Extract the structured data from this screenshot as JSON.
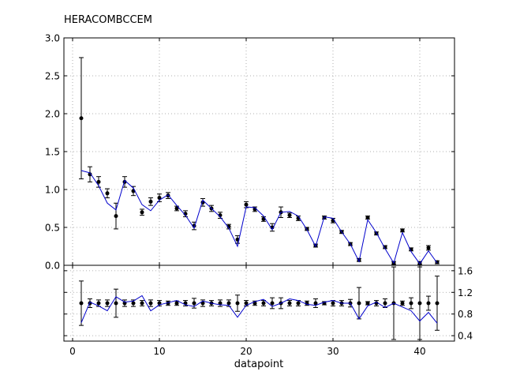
{
  "chart_data": [
    {
      "type": "line",
      "title": "HERACOMBCCEM",
      "xlabel": "",
      "ylabel": "",
      "xlim": [
        -1,
        44
      ],
      "ylim": [
        0,
        3.0
      ],
      "yticks": [
        0.0,
        0.5,
        1.0,
        1.5,
        2.0,
        2.5,
        3.0
      ],
      "ytick_labels": [
        "0.0",
        "0.5",
        "1.0",
        "1.5",
        "2.0",
        "2.5",
        "3.0"
      ],
      "xticks": [
        0,
        10,
        20,
        30,
        40
      ],
      "grid": true,
      "legend": "none",
      "colors": {
        "data": "#000000",
        "theory": "#0000cc",
        "grid": "#999999"
      },
      "series": [
        {
          "kind": "errorbar",
          "x": [
            1,
            2,
            3,
            4,
            5,
            6,
            7,
            8,
            9,
            10,
            11,
            12,
            13,
            14,
            15,
            16,
            17,
            18,
            19,
            20,
            21,
            22,
            23,
            24,
            25,
            26,
            27,
            28,
            29,
            30,
            31,
            32,
            33,
            34,
            35,
            36,
            37,
            38,
            39,
            40,
            41,
            42
          ],
          "y": [
            1.94,
            1.2,
            1.1,
            0.95,
            0.65,
            1.1,
            0.98,
            0.7,
            0.84,
            0.89,
            0.92,
            0.75,
            0.68,
            0.52,
            0.83,
            0.75,
            0.66,
            0.51,
            0.34,
            0.8,
            0.74,
            0.61,
            0.5,
            0.7,
            0.66,
            0.62,
            0.48,
            0.26,
            0.63,
            0.59,
            0.44,
            0.28,
            0.07,
            0.63,
            0.42,
            0.24,
            0.03,
            0.46,
            0.21,
            0.03,
            0.23,
            0.04
          ],
          "err": [
            0.8,
            0.1,
            0.07,
            0.06,
            0.17,
            0.07,
            0.06,
            0.04,
            0.05,
            0.05,
            0.04,
            0.03,
            0.04,
            0.05,
            0.05,
            0.04,
            0.04,
            0.03,
            0.05,
            0.04,
            0.03,
            0.03,
            0.05,
            0.07,
            0.03,
            0.03,
            0.02,
            0.02,
            0.02,
            0.03,
            0.02,
            0.02,
            0.02,
            0.02,
            0.02,
            0.02,
            0.02,
            0.02,
            0.02,
            0.02,
            0.03,
            0.02
          ]
        },
        {
          "kind": "line",
          "x": [
            1,
            2,
            3,
            4,
            5,
            6,
            7,
            8,
            9,
            10,
            11,
            12,
            13,
            14,
            15,
            16,
            17,
            18,
            19,
            20,
            21,
            22,
            23,
            24,
            25,
            26,
            27,
            28,
            29,
            30,
            31,
            32,
            33,
            34,
            35,
            36,
            37,
            38,
            39,
            40,
            41,
            42
          ],
          "y": [
            1.25,
            1.22,
            1.05,
            0.82,
            0.73,
            1.12,
            1.02,
            0.8,
            0.72,
            0.86,
            0.93,
            0.79,
            0.66,
            0.49,
            0.86,
            0.75,
            0.64,
            0.49,
            0.25,
            0.77,
            0.76,
            0.65,
            0.47,
            0.7,
            0.71,
            0.65,
            0.47,
            0.25,
            0.64,
            0.62,
            0.44,
            0.28,
            0.05,
            0.6,
            0.43,
            0.22,
            0.03,
            0.43,
            0.18,
            0.02,
            0.19,
            0.03
          ]
        }
      ]
    },
    {
      "type": "line",
      "title": "",
      "xlabel": "datapoint",
      "ylabel": "",
      "xlim": [
        -1,
        44
      ],
      "ylim": [
        0.3,
        1.7
      ],
      "yticks": [
        0.4,
        0.8,
        1.2,
        1.6
      ],
      "ytick_labels": [
        "0.4",
        "0.8",
        "1.2",
        "1.6"
      ],
      "xticks": [
        0,
        10,
        20,
        30,
        40
      ],
      "xtick_labels": [
        "0",
        "10",
        "20",
        "30",
        "40"
      ],
      "grid": true,
      "legend": "none",
      "colors": {
        "data": "#000000",
        "theory": "#0000cc",
        "grid": "#999999"
      },
      "series": [
        {
          "kind": "errorbar",
          "x": [
            1,
            2,
            3,
            4,
            5,
            6,
            7,
            8,
            9,
            10,
            11,
            12,
            13,
            14,
            15,
            16,
            17,
            18,
            19,
            20,
            21,
            22,
            23,
            24,
            25,
            26,
            27,
            28,
            29,
            30,
            31,
            32,
            33,
            34,
            35,
            36,
            37,
            38,
            39,
            40,
            41,
            42
          ],
          "y": [
            1,
            1,
            1,
            1,
            1,
            1,
            1,
            1,
            1,
            1,
            1,
            1,
            1,
            1,
            1,
            1,
            1,
            1,
            1,
            1,
            1,
            1,
            1,
            1,
            1,
            1,
            1,
            1,
            1,
            1,
            1,
            1,
            1,
            1,
            1,
            1,
            1,
            1,
            1,
            1,
            1,
            1
          ],
          "err": [
            0.41,
            0.08,
            0.06,
            0.06,
            0.26,
            0.06,
            0.06,
            0.05,
            0.06,
            0.05,
            0.04,
            0.04,
            0.05,
            0.09,
            0.06,
            0.05,
            0.06,
            0.06,
            0.15,
            0.05,
            0.04,
            0.05,
            0.1,
            0.1,
            0.05,
            0.05,
            0.04,
            0.08,
            0.03,
            0.05,
            0.05,
            0.07,
            0.29,
            0.03,
            0.05,
            0.08,
            0.67,
            0.04,
            0.1,
            0.67,
            0.13,
            0.5
          ]
        },
        {
          "kind": "line",
          "x": [
            1,
            2,
            3,
            4,
            5,
            6,
            7,
            8,
            9,
            10,
            11,
            12,
            13,
            14,
            15,
            16,
            17,
            18,
            19,
            20,
            21,
            22,
            23,
            24,
            25,
            26,
            27,
            28,
            29,
            30,
            31,
            32,
            33,
            34,
            35,
            36,
            37,
            38,
            39,
            40,
            41,
            42
          ],
          "y": [
            0.64,
            1.02,
            0.95,
            0.86,
            1.12,
            1.02,
            1.04,
            1.14,
            0.86,
            0.97,
            1.01,
            1.05,
            0.97,
            0.94,
            1.04,
            1.0,
            0.97,
            0.96,
            0.74,
            0.96,
            1.03,
            1.07,
            0.94,
            1.0,
            1.08,
            1.05,
            0.98,
            0.96,
            1.02,
            1.05,
            1.0,
            1.0,
            0.71,
            0.95,
            1.02,
            0.92,
            1.0,
            0.93,
            0.86,
            0.67,
            0.83,
            0.63
          ]
        }
      ]
    }
  ]
}
